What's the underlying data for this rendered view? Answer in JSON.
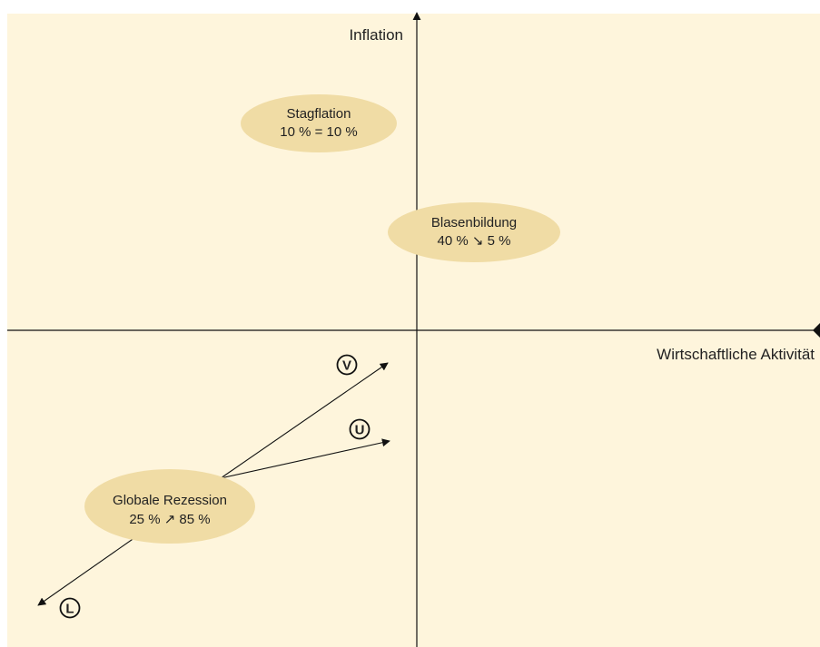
{
  "colors": {
    "background": "#fef5dc",
    "bubble": "#f0dca5",
    "ink": "#111111"
  },
  "axes": {
    "y_label": "Inflation",
    "x_label": "Wirtschaftliche Aktivität"
  },
  "scenarios": [
    {
      "name": "Stagflation",
      "value": "10 % = 10 %"
    },
    {
      "name": "Blasenbildung",
      "value": "40 % ↘ 5 %"
    },
    {
      "name": "Globale Rezession",
      "value": "25 % ↗ 85 %"
    }
  ],
  "recovery_paths": [
    {
      "letter": "V"
    },
    {
      "letter": "U"
    },
    {
      "letter": "L"
    }
  ]
}
